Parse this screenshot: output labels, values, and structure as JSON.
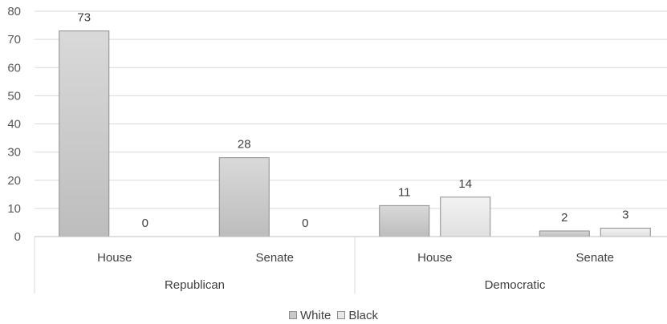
{
  "chart_data": {
    "type": "bar",
    "groups": [
      {
        "label": "Republican",
        "categories": [
          "House",
          "Senate"
        ]
      },
      {
        "label": "Democratic",
        "categories": [
          "House",
          "Senate"
        ]
      }
    ],
    "series": [
      {
        "name": "White",
        "values": [
          73,
          28,
          11,
          2
        ],
        "color": "#c8c8c8"
      },
      {
        "name": "Black",
        "values": [
          0,
          0,
          14,
          3
        ],
        "color": "#e8e8e8"
      }
    ],
    "y_ticks": [
      "0",
      "10",
      "20",
      "30",
      "40",
      "50",
      "60",
      "70",
      "80"
    ],
    "ylim": [
      0,
      80
    ],
    "grid": true,
    "legend_position": "bottom-center",
    "data_labels": true
  }
}
